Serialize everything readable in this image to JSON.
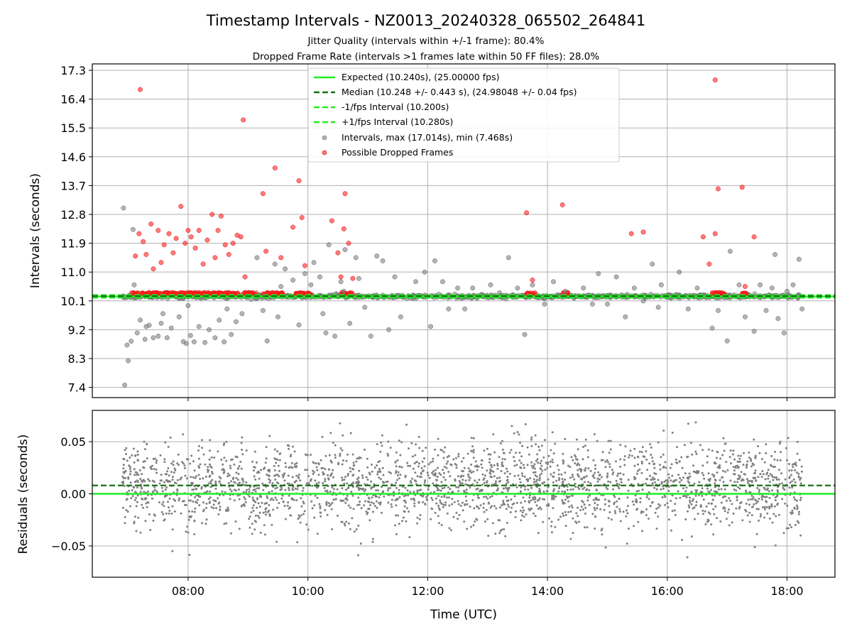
{
  "chart_data": [
    {
      "type": "scatter",
      "title": "Timestamp Intervals - NZ0013_20240328_065502_264841",
      "subtitles": [
        "Jitter Quality (intervals within +/-1 frame): 80.4%",
        "Dropped Frame Rate (intervals >1 frames late within 50 FF files): 28.0%"
      ],
      "xlabel": "",
      "ylabel": "Intervals (seconds)",
      "x_unit": "hours (UTC)",
      "xlim": [
        6.4,
        18.8
      ],
      "ylim": [
        7.08,
        17.5
      ],
      "yticks": [
        7.4,
        8.3,
        9.2,
        10.1,
        11.0,
        11.9,
        12.8,
        13.7,
        14.6,
        15.5,
        16.4,
        17.3
      ],
      "yticklabels": [
        "7.4",
        "8.3",
        "9.2",
        "10.1",
        "11.0",
        "11.9",
        "12.8",
        "13.7",
        "14.6",
        "15.5",
        "16.4",
        "17.3"
      ],
      "grid": true,
      "legend_position": "upper-center",
      "legend": [
        {
          "label": "Expected (10.240s), (25.00000 fps)",
          "style": "solid",
          "color": "#22ee22"
        },
        {
          "label": "Median (10.248 +/- 0.443 s), (24.98048 +/- 0.04 fps)",
          "style": "dashed",
          "color": "#137313"
        },
        {
          "label": "-1/fps Interval (10.200s)",
          "style": "dashed",
          "color": "#22ee22"
        },
        {
          "label": "+1/fps Interval (10.280s)",
          "style": "dashed",
          "color": "#22ee22"
        },
        {
          "label": "Intervals, max (17.014s), min (7.468s)",
          "style": "marker",
          "color": "#808080"
        },
        {
          "label": "Possible Dropped Frames",
          "style": "marker",
          "color": "#ff2020"
        }
      ],
      "reference_lines": {
        "expected": 10.24,
        "median": 10.248,
        "minus_1fps": 10.2,
        "plus_1fps": 10.28
      },
      "series": [
        {
          "name": "Intervals, max (17.014s), min (7.468s)",
          "color": "#808080",
          "points": [
            [
              6.92,
              13.0
            ],
            [
              6.94,
              7.47
            ],
            [
              6.98,
              8.72
            ],
            [
              7.0,
              8.23
            ],
            [
              7.05,
              8.84
            ],
            [
              7.08,
              12.33
            ],
            [
              7.1,
              10.6
            ],
            [
              7.15,
              9.1
            ],
            [
              7.2,
              9.5
            ],
            [
              7.28,
              8.9
            ],
            [
              7.35,
              9.34
            ],
            [
              7.42,
              8.95
            ],
            [
              7.5,
              9.0
            ],
            [
              7.58,
              9.7
            ],
            [
              7.65,
              8.95
            ],
            [
              7.72,
              9.25
            ],
            [
              7.85,
              9.6
            ],
            [
              7.92,
              8.83
            ],
            [
              7.97,
              8.77
            ],
            [
              8.04,
              9.02
            ],
            [
              8.1,
              8.82
            ],
            [
              8.18,
              9.3
            ],
            [
              8.28,
              8.8
            ],
            [
              8.35,
              9.2
            ],
            [
              8.45,
              8.95
            ],
            [
              8.52,
              9.5
            ],
            [
              8.6,
              8.82
            ],
            [
              8.72,
              9.05
            ],
            [
              8.8,
              9.45
            ],
            [
              8.9,
              9.7
            ],
            [
              9.05,
              10.15
            ],
            [
              9.15,
              11.45
            ],
            [
              9.25,
              9.8
            ],
            [
              9.32,
              8.85
            ],
            [
              9.45,
              11.25
            ],
            [
              9.55,
              10.55
            ],
            [
              9.62,
              11.1
            ],
            [
              9.75,
              10.75
            ],
            [
              9.85,
              9.35
            ],
            [
              9.95,
              10.95
            ],
            [
              10.05,
              10.6
            ],
            [
              10.1,
              11.3
            ],
            [
              10.2,
              10.85
            ],
            [
              10.3,
              9.1
            ],
            [
              10.35,
              11.85
            ],
            [
              10.45,
              9.0
            ],
            [
              10.55,
              10.7
            ],
            [
              10.6,
              10.4
            ],
            [
              10.62,
              11.7
            ],
            [
              10.7,
              9.4
            ],
            [
              10.8,
              11.45
            ],
            [
              10.85,
              10.8
            ],
            [
              10.95,
              9.9
            ],
            [
              11.05,
              9.0
            ],
            [
              11.15,
              11.5
            ],
            [
              11.25,
              11.35
            ],
            [
              11.35,
              9.2
            ],
            [
              11.45,
              10.85
            ],
            [
              11.55,
              9.6
            ],
            [
              11.7,
              10.2
            ],
            [
              11.8,
              10.7
            ],
            [
              11.95,
              11.0
            ],
            [
              12.05,
              9.3
            ],
            [
              12.12,
              11.35
            ],
            [
              12.25,
              10.7
            ],
            [
              12.35,
              9.85
            ],
            [
              12.5,
              10.5
            ],
            [
              12.62,
              9.85
            ],
            [
              12.75,
              10.5
            ],
            [
              12.9,
              10.3
            ],
            [
              13.05,
              10.6
            ],
            [
              13.2,
              10.35
            ],
            [
              13.35,
              11.45
            ],
            [
              13.5,
              10.5
            ],
            [
              13.62,
              9.05
            ],
            [
              13.75,
              10.6
            ],
            [
              13.85,
              10.2
            ],
            [
              13.95,
              10.0
            ],
            [
              14.1,
              10.7
            ],
            [
              14.3,
              10.4
            ],
            [
              14.45,
              10.25
            ],
            [
              14.6,
              10.5
            ],
            [
              14.75,
              10.0
            ],
            [
              14.85,
              10.95
            ],
            [
              15.0,
              10.0
            ],
            [
              15.15,
              10.85
            ],
            [
              15.3,
              9.6
            ],
            [
              15.45,
              10.5
            ],
            [
              15.6,
              10.1
            ],
            [
              15.75,
              11.25
            ],
            [
              15.85,
              9.9
            ],
            [
              15.9,
              10.6
            ],
            [
              16.05,
              10.2
            ],
            [
              16.2,
              11.0
            ],
            [
              16.35,
              9.85
            ],
            [
              16.5,
              10.5
            ],
            [
              16.65,
              10.2
            ],
            [
              16.75,
              9.25
            ],
            [
              16.85,
              9.8
            ],
            [
              17.0,
              8.85
            ],
            [
              17.05,
              11.65
            ],
            [
              17.2,
              10.6
            ],
            [
              17.3,
              9.6
            ],
            [
              17.45,
              9.15
            ],
            [
              17.55,
              10.6
            ],
            [
              17.65,
              9.8
            ],
            [
              17.75,
              10.5
            ],
            [
              17.8,
              11.55
            ],
            [
              17.85,
              9.55
            ],
            [
              17.95,
              9.1
            ],
            [
              18.0,
              10.4
            ],
            [
              18.1,
              10.6
            ],
            [
              18.2,
              11.4
            ],
            [
              18.25,
              9.85
            ],
            [
              7.3,
              9.3
            ],
            [
              7.55,
              9.4
            ],
            [
              8.0,
              9.95
            ],
            [
              8.65,
              9.85
            ],
            [
              9.5,
              9.6
            ],
            [
              10.25,
              9.7
            ]
          ]
        },
        {
          "name": "Possible Dropped Frames",
          "color": "#ff2020",
          "points": [
            [
              7.2,
              16.7
            ],
            [
              7.12,
              11.5
            ],
            [
              7.18,
              12.2
            ],
            [
              7.25,
              11.95
            ],
            [
              7.3,
              11.55
            ],
            [
              7.38,
              12.5
            ],
            [
              7.42,
              11.1
            ],
            [
              7.5,
              12.3
            ],
            [
              7.55,
              11.3
            ],
            [
              7.6,
              11.85
            ],
            [
              7.68,
              12.2
            ],
            [
              7.75,
              11.6
            ],
            [
              7.8,
              12.05
            ],
            [
              7.88,
              13.05
            ],
            [
              7.95,
              11.9
            ],
            [
              8.0,
              12.3
            ],
            [
              8.05,
              12.1
            ],
            [
              8.12,
              11.75
            ],
            [
              8.18,
              12.3
            ],
            [
              8.25,
              11.25
            ],
            [
              8.32,
              12.0
            ],
            [
              8.4,
              12.8
            ],
            [
              8.45,
              11.45
            ],
            [
              8.5,
              12.3
            ],
            [
              8.55,
              12.75
            ],
            [
              8.62,
              11.85
            ],
            [
              8.68,
              11.55
            ],
            [
              8.75,
              11.9
            ],
            [
              8.82,
              12.15
            ],
            [
              8.88,
              12.1
            ],
            [
              8.92,
              15.75
            ],
            [
              8.95,
              10.85
            ],
            [
              9.25,
              13.45
            ],
            [
              9.3,
              11.65
            ],
            [
              9.45,
              14.25
            ],
            [
              9.55,
              11.45
            ],
            [
              9.75,
              12.4
            ],
            [
              9.85,
              13.85
            ],
            [
              9.9,
              12.7
            ],
            [
              9.95,
              11.2
            ],
            [
              10.4,
              12.6
            ],
            [
              10.5,
              11.6
            ],
            [
              10.6,
              12.35
            ],
            [
              10.62,
              13.45
            ],
            [
              10.68,
              11.9
            ],
            [
              10.55,
              10.85
            ],
            [
              10.75,
              10.8
            ],
            [
              13.65,
              12.85
            ],
            [
              13.75,
              10.75
            ],
            [
              14.25,
              13.1
            ],
            [
              15.4,
              12.2
            ],
            [
              15.6,
              12.25
            ],
            [
              16.6,
              12.1
            ],
            [
              16.8,
              17.0
            ],
            [
              16.85,
              13.6
            ],
            [
              16.8,
              12.2
            ],
            [
              16.7,
              11.25
            ],
            [
              17.25,
              13.65
            ],
            [
              17.3,
              10.55
            ],
            [
              17.45,
              12.1
            ]
          ]
        }
      ],
      "dense_band": {
        "gray_range": [
          6.9,
          18.25
        ],
        "red_segments": [
          [
            7.05,
            9.15
          ],
          [
            9.25,
            9.6
          ],
          [
            9.8,
            10.05
          ],
          [
            10.55,
            10.75
          ],
          [
            13.65,
            13.8
          ],
          [
            14.25,
            14.35
          ],
          [
            16.75,
            16.95
          ],
          [
            17.25,
            17.35
          ]
        ]
      }
    },
    {
      "type": "scatter",
      "title": "",
      "xlabel": "Time (UTC)",
      "ylabel": "Residuals (seconds)",
      "xlim": [
        6.4,
        18.8
      ],
      "ylim": [
        -0.08,
        0.08
      ],
      "xticks": [
        8,
        10,
        12,
        14,
        16,
        18
      ],
      "xticklabels": [
        "08:00",
        "10:00",
        "12:00",
        "14:00",
        "16:00",
        "18:00"
      ],
      "yticks": [
        -0.05,
        0.0,
        0.05
      ],
      "yticklabels": [
        "−0.05",
        "0.00",
        "0.05"
      ],
      "grid": true,
      "reference_lines": {
        "expected": 0.0,
        "median": 0.008
      },
      "series": [
        {
          "name": "",
          "color": "#808080",
          "x_range": [
            6.9,
            18.25
          ],
          "y_mean": 0.008,
          "y_spread": 0.03,
          "y_clip": [
            -0.079,
            0.079
          ]
        }
      ]
    }
  ]
}
